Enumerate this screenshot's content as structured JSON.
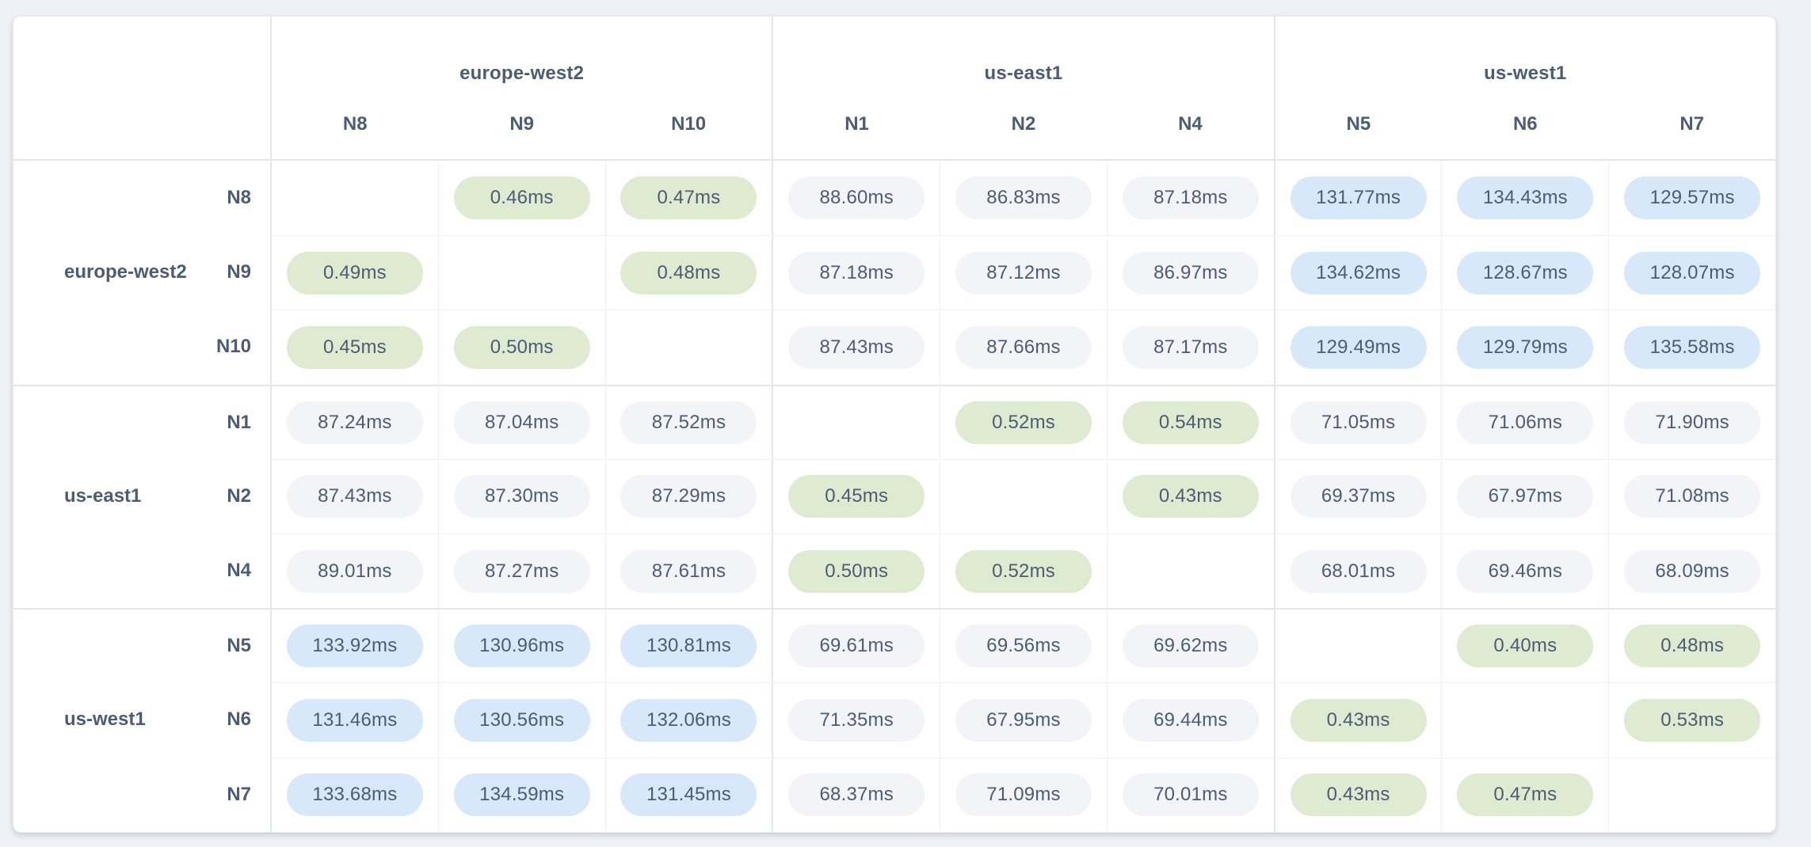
{
  "page": {
    "background": "#eff1f6",
    "description_colors": {
      "text": "#4c5c74",
      "low_latency_pill": "#dfebd1",
      "mid_latency_pill": "#f2f4f8",
      "high_latency_pill": "#d6e8f9",
      "grid_border": "#e3e6ec",
      "card_background": "#ffffff"
    }
  },
  "chart_data": {
    "type": "heatmap",
    "title": "",
    "unit": "ms",
    "value_format_decimals": 2,
    "thresholds": {
      "low_max": 1,
      "high_min": 100
    },
    "col_groups": [
      {
        "region": "europe-west2",
        "nodes": [
          "N8",
          "N9",
          "N10"
        ]
      },
      {
        "region": "us-east1",
        "nodes": [
          "N1",
          "N2",
          "N4"
        ]
      },
      {
        "region": "us-west1",
        "nodes": [
          "N5",
          "N6",
          "N7"
        ]
      }
    ],
    "row_groups": [
      {
        "region": "europe-west2",
        "nodes": [
          "N8",
          "N9",
          "N10"
        ]
      },
      {
        "region": "us-east1",
        "nodes": [
          "N1",
          "N2",
          "N4"
        ]
      },
      {
        "region": "us-west1",
        "nodes": [
          "N5",
          "N6",
          "N7"
        ]
      }
    ],
    "columns_flat": [
      "N8",
      "N9",
      "N10",
      "N1",
      "N2",
      "N4",
      "N5",
      "N6",
      "N7"
    ],
    "values": {
      "N8": [
        null,
        0.46,
        0.47,
        88.6,
        86.83,
        87.18,
        131.77,
        134.43,
        129.57
      ],
      "N9": [
        0.49,
        null,
        0.48,
        87.18,
        87.12,
        86.97,
        134.62,
        128.67,
        128.07
      ],
      "N10": [
        0.45,
        0.5,
        null,
        87.43,
        87.66,
        87.17,
        129.49,
        129.79,
        135.58
      ],
      "N1": [
        87.24,
        87.04,
        87.52,
        null,
        0.52,
        0.54,
        71.05,
        71.06,
        71.9
      ],
      "N2": [
        87.43,
        87.3,
        87.29,
        0.45,
        null,
        0.43,
        69.37,
        67.97,
        71.08
      ],
      "N4": [
        89.01,
        87.27,
        87.61,
        0.5,
        0.52,
        null,
        68.01,
        69.46,
        68.09
      ],
      "N5": [
        133.92,
        130.96,
        130.81,
        69.61,
        69.56,
        69.62,
        null,
        0.4,
        0.48
      ],
      "N6": [
        131.46,
        130.56,
        132.06,
        71.35,
        67.95,
        69.44,
        0.43,
        null,
        0.53
      ],
      "N7": [
        133.68,
        134.59,
        131.45,
        68.37,
        71.09,
        70.01,
        0.43,
        0.47,
        null
      ]
    }
  }
}
